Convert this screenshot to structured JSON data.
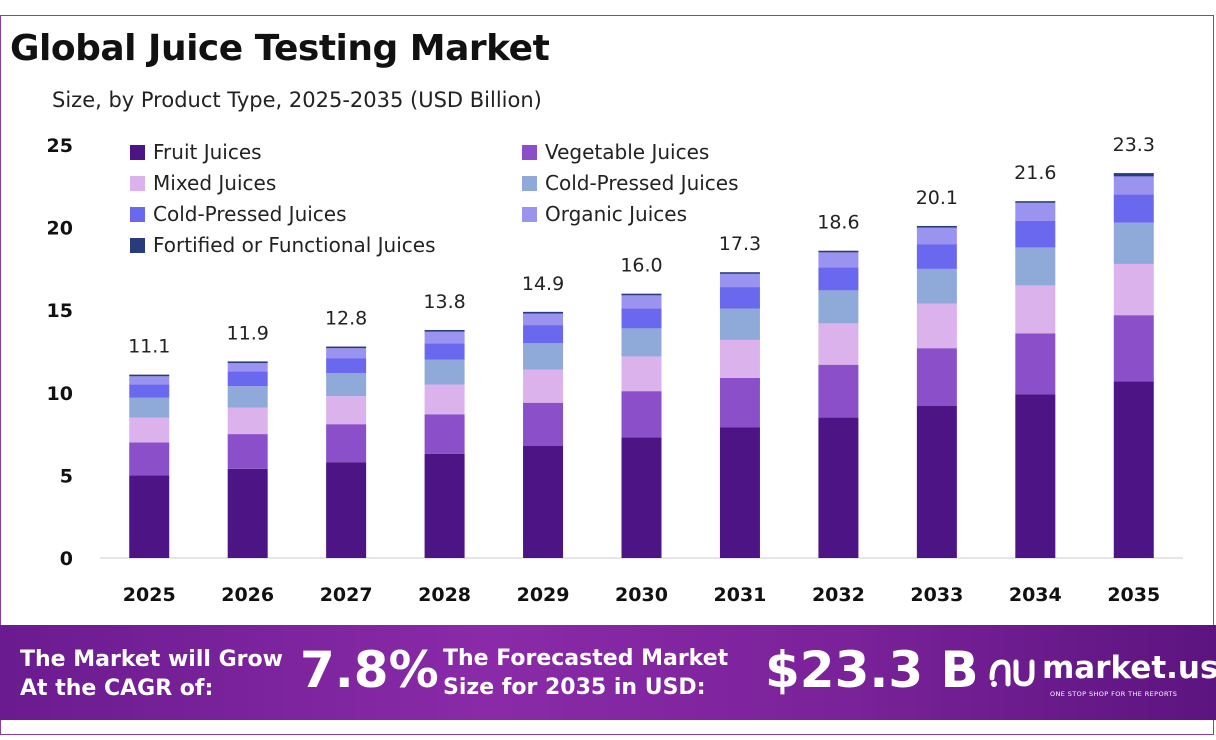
{
  "title": "Global Juice Testing Market",
  "subtitle": "Size, by Product Type, 2025-2035 (USD Billion)",
  "colors": {
    "Fruit Juices": "#4c1484",
    "Vegetable Juices": "#8b4fc9",
    "Mixed Juices": "#dbb2ec",
    "Cold-Pressed Juices A": "#8fa9d8",
    "Cold-Pressed Juices B": "#6b68f0",
    "Organic Juices": "#9b93f0",
    "Fortified or Functional Juices": "#283c7a"
  },
  "chart_data": {
    "type": "bar",
    "stacked": true,
    "title": "Global Juice Testing Market",
    "subtitle": "Size, by Product Type, 2025-2035 (USD Billion)",
    "categories": [
      "2025",
      "2026",
      "2027",
      "2028",
      "2029",
      "2030",
      "2031",
      "2032",
      "2033",
      "2034",
      "2035"
    ],
    "totals": [
      "11.1",
      "11.9",
      "12.8",
      "13.8",
      "14.9",
      "16.0",
      "17.3",
      "18.6",
      "20.1",
      "21.6",
      "23.3"
    ],
    "ylim": [
      0,
      25
    ],
    "yticks": [
      "0",
      "5",
      "10",
      "15",
      "20",
      "25"
    ],
    "grid": false,
    "legend_position": "top-left",
    "series": [
      {
        "name": "Fruit Juices",
        "values": [
          5.0,
          5.4,
          5.8,
          6.3,
          6.8,
          7.3,
          7.9,
          8.5,
          9.2,
          9.9,
          10.7
        ]
      },
      {
        "name": "Vegetable Juices",
        "values": [
          2.0,
          2.1,
          2.3,
          2.4,
          2.6,
          2.8,
          3.0,
          3.2,
          3.5,
          3.7,
          4.0
        ]
      },
      {
        "name": "Mixed Juices",
        "values": [
          1.5,
          1.6,
          1.7,
          1.8,
          2.0,
          2.1,
          2.3,
          2.5,
          2.7,
          2.9,
          3.1
        ]
      },
      {
        "name": "Cold-Pressed Juices",
        "values": [
          1.2,
          1.3,
          1.4,
          1.5,
          1.6,
          1.7,
          1.9,
          2.0,
          2.1,
          2.3,
          2.5
        ]
      },
      {
        "name": "Cold-Pressed Juices",
        "values": [
          0.8,
          0.9,
          0.9,
          1.0,
          1.1,
          1.2,
          1.3,
          1.4,
          1.5,
          1.6,
          1.7
        ]
      },
      {
        "name": "Organic Juices",
        "values": [
          0.5,
          0.5,
          0.6,
          0.7,
          0.7,
          0.8,
          0.8,
          0.9,
          1.0,
          1.1,
          1.1
        ]
      },
      {
        "name": "Fortified or Functional Juices",
        "values": [
          0.1,
          0.1,
          0.1,
          0.1,
          0.1,
          0.1,
          0.1,
          0.1,
          0.1,
          0.1,
          0.2
        ]
      }
    ]
  },
  "footer": {
    "cagr_label_line1": "The Market will Grow",
    "cagr_label_line2": "At the CAGR of:",
    "cagr_value": "7.8%",
    "forecast_label_line1": "The Forecasted Market",
    "forecast_label_line2": "Size for 2035 in USD:",
    "forecast_value": "$23.3 B",
    "brand_name": "market.us",
    "brand_tagline": "ONE STOP SHOP FOR THE REPORTS"
  }
}
